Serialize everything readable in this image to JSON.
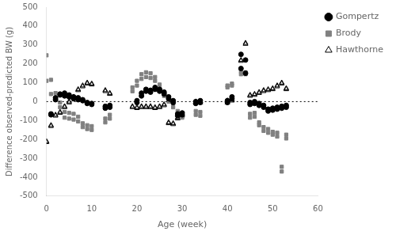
{
  "chart_data": {
    "type": "scatter",
    "xlabel": "Age (week)",
    "ylabel": "Difference observed-predicted BW (g)",
    "xlim": [
      0,
      60
    ],
    "ylim": [
      -500,
      500
    ],
    "xticks": [
      0,
      10,
      20,
      30,
      40,
      50,
      60
    ],
    "yticks": [
      -500,
      -400,
      -300,
      -200,
      -100,
      0,
      100,
      200,
      300,
      400,
      500
    ],
    "hline": 0,
    "grid": false,
    "legend": "upper right",
    "series": [
      {
        "name": "Gompertz",
        "color": "#000000",
        "marker": "circle",
        "x": [
          1,
          1,
          2,
          2,
          3,
          3,
          4,
          4,
          5,
          5,
          6,
          6,
          7,
          7,
          8,
          8,
          9,
          9,
          10,
          10,
          13,
          13,
          14,
          14,
          20,
          20,
          21,
          21,
          22,
          22,
          23,
          23,
          24,
          24,
          25,
          25,
          26,
          26,
          27,
          27,
          28,
          28,
          29,
          29,
          30,
          30,
          33,
          33,
          34,
          34,
          40,
          40,
          41,
          41,
          43,
          43,
          44,
          44,
          45,
          45,
          46,
          46,
          47,
          47,
          48,
          48,
          49,
          49,
          50,
          50,
          51,
          51,
          52,
          52,
          53,
          53
        ],
        "values": [
          -65,
          -70,
          10,
          20,
          35,
          40,
          30,
          45,
          25,
          35,
          15,
          25,
          10,
          20,
          5,
          10,
          -10,
          -5,
          -15,
          -10,
          -25,
          -35,
          -20,
          -30,
          -5,
          5,
          30,
          45,
          55,
          65,
          50,
          60,
          65,
          75,
          55,
          65,
          40,
          50,
          15,
          25,
          -5,
          5,
          -75,
          -65,
          -70,
          -60,
          -10,
          0,
          -5,
          5,
          -5,
          5,
          15,
          25,
          175,
          250,
          150,
          220,
          -15,
          -5,
          -10,
          0,
          -20,
          -10,
          -30,
          -20,
          -50,
          -40,
          -45,
          -35,
          -40,
          -30,
          -35,
          -25,
          -30,
          -20
        ]
      },
      {
        "name": "Brody",
        "color": "#808080",
        "marker": "square",
        "x": [
          0,
          0,
          1,
          1,
          2,
          2,
          3,
          3,
          4,
          4,
          5,
          5,
          6,
          6,
          7,
          7,
          8,
          8,
          9,
          9,
          10,
          10,
          13,
          13,
          14,
          14,
          19,
          19,
          20,
          20,
          21,
          21,
          22,
          22,
          23,
          23,
          24,
          24,
          25,
          25,
          26,
          26,
          27,
          27,
          28,
          28,
          29,
          29,
          30,
          30,
          33,
          33,
          34,
          34,
          40,
          40,
          41,
          41,
          43,
          43,
          44,
          44,
          45,
          45,
          46,
          46,
          47,
          47,
          48,
          48,
          49,
          49,
          50,
          50,
          51,
          51,
          52,
          52,
          53,
          53
        ],
        "values": [
          245,
          110,
          115,
          40,
          45,
          10,
          -5,
          -30,
          -55,
          -85,
          -60,
          -90,
          -65,
          -95,
          -80,
          -105,
          -115,
          -135,
          -125,
          -145,
          -130,
          -150,
          -90,
          -110,
          -70,
          -90,
          55,
          75,
          85,
          110,
          120,
          145,
          130,
          155,
          125,
          150,
          110,
          130,
          70,
          90,
          30,
          50,
          0,
          20,
          -30,
          -10,
          -70,
          -50,
          -85,
          -65,
          -70,
          -50,
          -75,
          -55,
          75,
          85,
          85,
          95,
          145,
          160,
          145,
          155,
          -85,
          -65,
          -80,
          -60,
          -125,
          -110,
          -155,
          -135,
          -165,
          -145,
          -175,
          -160,
          -185,
          -165,
          -370,
          -345,
          -195,
          -175
        ]
      },
      {
        "name": "Hawthorne",
        "color": "#000000",
        "marker": "open_triangle",
        "x": [
          0,
          0,
          1,
          1,
          2,
          2,
          3,
          3,
          4,
          4,
          5,
          5,
          6,
          6,
          7,
          7,
          8,
          8,
          9,
          9,
          10,
          10,
          13,
          13,
          14,
          14,
          19,
          19,
          20,
          20,
          21,
          21,
          22,
          22,
          23,
          23,
          24,
          24,
          25,
          25,
          26,
          26,
          27,
          27,
          28,
          28,
          29,
          29,
          30,
          30,
          33,
          33,
          34,
          34,
          40,
          40,
          41,
          41,
          43,
          43,
          44,
          44,
          45,
          45,
          46,
          46,
          47,
          47,
          48,
          48,
          49,
          49,
          50,
          50,
          51,
          51,
          52,
          52,
          53,
          53
        ],
        "values": [
          -215,
          -210,
          -130,
          -125,
          -75,
          -70,
          -60,
          -55,
          -30,
          -25,
          -5,
          0,
          20,
          25,
          60,
          65,
          80,
          85,
          95,
          100,
          90,
          95,
          55,
          60,
          40,
          45,
          -30,
          -25,
          -35,
          -30,
          -30,
          -25,
          -30,
          -25,
          -30,
          -25,
          -35,
          -30,
          -30,
          -25,
          -20,
          -15,
          -115,
          -110,
          -120,
          -115,
          -90,
          -85,
          -75,
          -70,
          -5,
          0,
          -5,
          0,
          -5,
          5,
          5,
          10,
          215,
          220,
          305,
          310,
          30,
          35,
          35,
          40,
          45,
          50,
          55,
          60,
          60,
          65,
          65,
          70,
          80,
          85,
          95,
          100,
          65,
          70
        ]
      }
    ]
  }
}
